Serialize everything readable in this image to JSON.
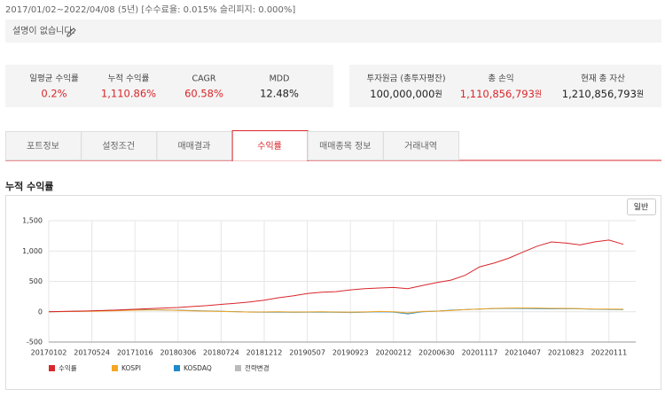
{
  "header": {
    "period": "2017/01/02~2022/04/08 (5년) [수수료율: 0.015% 슬리피지: 0.000%]",
    "description": "설명이 없습니다."
  },
  "stats_left": [
    {
      "label": "일평균 수익률",
      "value": "0.2%",
      "color": "#d9262b"
    },
    {
      "label": "누적 수익률",
      "value": "1,110.86%",
      "color": "#d9262b"
    },
    {
      "label": "CAGR",
      "value": "60.58%",
      "color": "#d9262b"
    },
    {
      "label": "MDD",
      "value": "12.48%",
      "color": "#222222"
    }
  ],
  "stats_right": [
    {
      "label": "투자원금 (총투자평잔)",
      "value": "100,000,000",
      "unit": "원",
      "color": "#222222"
    },
    {
      "label": "총 손익",
      "value": "1,110,856,793",
      "unit": "원",
      "color": "#d9262b"
    },
    {
      "label": "현재 총 자산",
      "value": "1,210,856,793",
      "unit": "원",
      "color": "#222222"
    }
  ],
  "tabs": [
    "포트정보",
    "설정조건",
    "매매결과",
    "수익률",
    "매매종목 정보",
    "거래내역"
  ],
  "active_tab": 3,
  "section_title": "누적 수익률",
  "button": "일반",
  "chart_data": {
    "type": "line",
    "categories": [
      "20170102",
      null,
      null,
      "20170524",
      null,
      null,
      "20171016",
      null,
      null,
      "20180306",
      null,
      null,
      "20180724",
      null,
      null,
      "20181212",
      null,
      null,
      "20190507",
      null,
      null,
      "20190923",
      null,
      null,
      "20200212",
      null,
      null,
      "20200630",
      null,
      null,
      "20201117",
      null,
      null,
      "20210407",
      null,
      null,
      "20210823",
      null,
      null,
      "20220111",
      null
    ],
    "series": [
      {
        "name": "수익률",
        "color": "#d9262b",
        "values": [
          0,
          5,
          10,
          15,
          22,
          30,
          40,
          50,
          60,
          70,
          85,
          100,
          120,
          140,
          160,
          190,
          230,
          260,
          300,
          320,
          330,
          360,
          380,
          390,
          400,
          380,
          430,
          480,
          520,
          600,
          740,
          800,
          880,
          980,
          1080,
          1150,
          1130,
          1100,
          1150,
          1180,
          1110
        ]
      },
      {
        "name": "KOSPI",
        "color": "#f5a623",
        "values": [
          0,
          2,
          5,
          8,
          12,
          18,
          25,
          28,
          30,
          22,
          15,
          10,
          5,
          0,
          -5,
          -3,
          0,
          -5,
          -3,
          0,
          -5,
          -8,
          -3,
          5,
          0,
          -20,
          5,
          10,
          20,
          35,
          45,
          55,
          60,
          62,
          60,
          55,
          55,
          50,
          45,
          45,
          40
        ]
      },
      {
        "name": "KOSDAQ",
        "color": "#1f8ac9",
        "values": [
          0,
          3,
          8,
          12,
          20,
          30,
          40,
          35,
          30,
          25,
          18,
          12,
          8,
          2,
          -5,
          -8,
          -5,
          -10,
          -8,
          -5,
          -10,
          -12,
          -8,
          0,
          -5,
          -35,
          0,
          10,
          25,
          35,
          45,
          50,
          55,
          55,
          52,
          48,
          50,
          48,
          40,
          38,
          35
        ]
      },
      {
        "name": "전략변경",
        "color": "#bbbbbb",
        "values": [
          null,
          null,
          null,
          null,
          null,
          null,
          null,
          null,
          null,
          null,
          null,
          null,
          null,
          null,
          null,
          null,
          null,
          null,
          null,
          null,
          null,
          null,
          null,
          null,
          null,
          null,
          null,
          null,
          null,
          null,
          null,
          null,
          null,
          null,
          null,
          null,
          null,
          null,
          null,
          null,
          null
        ]
      }
    ],
    "ylim": [
      -500,
      1500
    ],
    "yticks": [
      -500,
      0,
      500,
      {
        "value": 1000,
        "label": "1,000"
      },
      {
        "value": 1500,
        "label": "1,500"
      }
    ],
    "grid": true
  }
}
